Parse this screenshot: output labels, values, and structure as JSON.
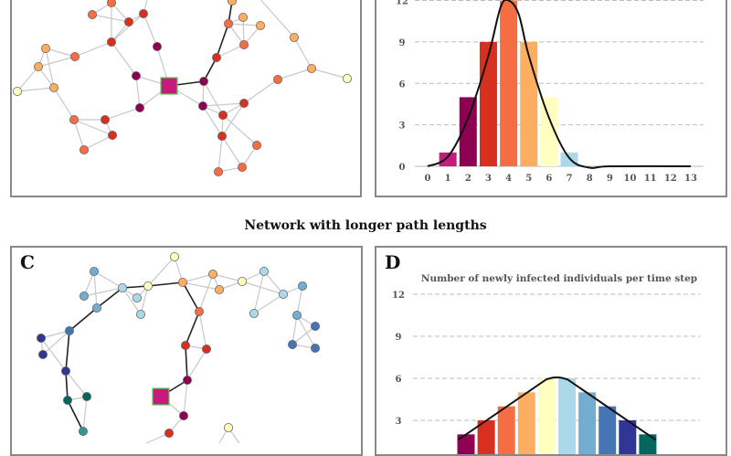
{
  "section_title": "Network with longer path lengths",
  "panels": {
    "a": "",
    "b": "",
    "c": "C",
    "d": "D"
  },
  "palette": {
    "seed": "#c51b7d",
    "step1": "#8e0152",
    "red": "#d7301f",
    "orange_red": "#f46d43",
    "orange": "#fdae61",
    "yellow": "#ffffbf",
    "light_blue": "#abd9e9",
    "mid_blue": "#74add1",
    "blue": "#4575b4",
    "navy": "#313695",
    "dark_teal": "#01665e",
    "teal": "#35978f",
    "edge": "#c8c8c8",
    "path": "#222222",
    "seed_border": "#4cd44c"
  },
  "chart_data": [
    {
      "type": "bar",
      "title": "",
      "categories": [
        "0",
        "1",
        "2",
        "3",
        "4",
        "5",
        "6",
        "7",
        "8",
        "9",
        "10",
        "11",
        "12",
        "13"
      ],
      "values": [
        0,
        1,
        5,
        9,
        12,
        9,
        5,
        1,
        0,
        0,
        0,
        0,
        0,
        0
      ],
      "bar_colors": [
        "#c51b7d",
        "#c51b7d",
        "#8e0152",
        "#d7301f",
        "#f46d43",
        "#fdae61",
        "#ffffbf",
        "#abd9e9",
        "",
        "",
        "",
        "",
        "",
        ""
      ],
      "yticks": [
        "0",
        "3",
        "6",
        "9",
        "12"
      ],
      "ylim": [
        0,
        12
      ],
      "grid": "dashed horizontal",
      "overlay": "smoothed black curve"
    },
    {
      "type": "bar",
      "title": "Number of newly infected individuals per time step",
      "values": [
        2,
        3,
        4,
        5,
        6,
        6,
        5,
        4,
        3,
        2
      ],
      "bar_colors": [
        "#8e0152",
        "#d7301f",
        "#f46d43",
        "#fdae61",
        "#ffffbf",
        "#abd9e9",
        "#74add1",
        "#4575b4",
        "#313695",
        "#01665e"
      ],
      "yticks": [
        "3",
        "6",
        "9",
        "12"
      ],
      "ylim": [
        0,
        12
      ],
      "grid": "dashed horizontal",
      "overlay": "smoothed black curve"
    }
  ]
}
